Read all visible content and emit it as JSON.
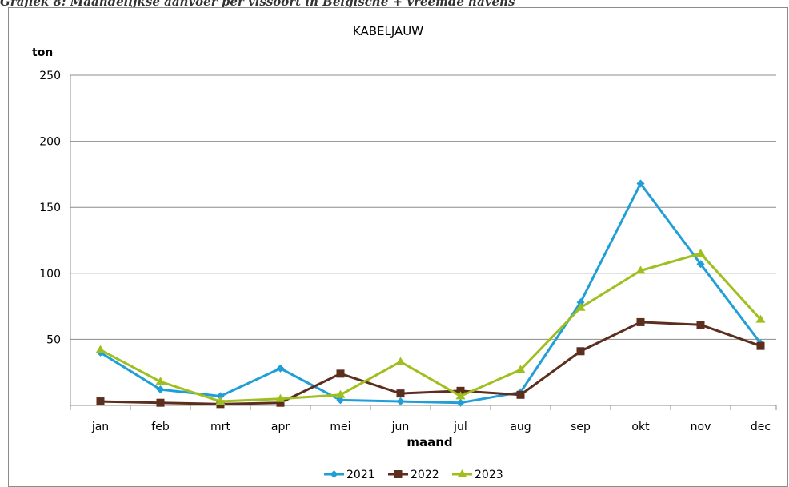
{
  "page": {
    "caption": "Grafiek 8: Maandelijkse aanvoer per vissoort in Belgische + vreemde havens"
  },
  "chart_data": {
    "type": "line",
    "title": "KABELJAUW",
    "ylabel": "ton",
    "xlabel": "maand",
    "categories": [
      "jan",
      "feb",
      "mrt",
      "apr",
      "mei",
      "jun",
      "jul",
      "aug",
      "sep",
      "okt",
      "nov",
      "dec"
    ],
    "ylim": [
      0,
      250
    ],
    "yticks": [
      50,
      100,
      150,
      200,
      250
    ],
    "grid": true,
    "legend_position": "bottom",
    "series": [
      {
        "name": "2021",
        "color": "#1f9ed8",
        "marker": "diamond",
        "values": [
          40,
          12,
          7,
          28,
          4,
          3,
          2,
          10,
          78,
          168,
          107,
          47
        ]
      },
      {
        "name": "2022",
        "color": "#5b2e1e",
        "marker": "square",
        "values": [
          3,
          2,
          1,
          2,
          24,
          9,
          11,
          8,
          41,
          63,
          61,
          45
        ]
      },
      {
        "name": "2023",
        "color": "#9fbf1f",
        "marker": "triangle",
        "values": [
          42,
          18,
          3,
          5,
          8,
          33,
          7,
          27,
          74,
          102,
          115,
          65
        ]
      }
    ]
  }
}
